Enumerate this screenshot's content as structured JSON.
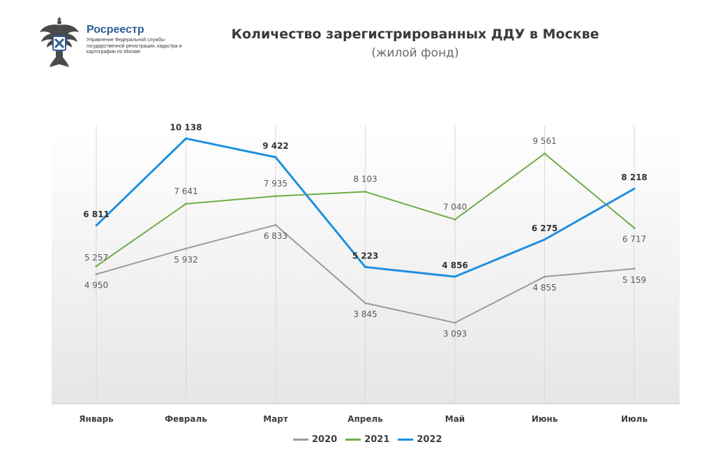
{
  "header": {
    "org_name": "Росреестр",
    "org_desc": "Управление Федеральной службы государственной регистрации, кадастра и картографии по Москве"
  },
  "chart_data": {
    "type": "line",
    "title": "Количество зарегистрированных  ДДУ в Москве",
    "subtitle": "(жилой фонд)",
    "categories": [
      "Январь",
      "Февраль",
      "Март",
      "Апрель",
      "Май",
      "Июнь",
      "Июль"
    ],
    "ylim": [
      0,
      11000
    ],
    "grid": "vertical",
    "legend": "bottom",
    "series": [
      {
        "name": "2020",
        "color": "#9b9b9b",
        "values": [
          4950,
          5932,
          6833,
          3845,
          3093,
          4855,
          5159
        ],
        "labels": [
          "4 950",
          "5 932",
          "6 833",
          "3 845",
          "3 093",
          "4 855",
          "5 159"
        ],
        "bold": false
      },
      {
        "name": "2021",
        "color": "#70ad47",
        "values": [
          5257,
          7641,
          7935,
          8103,
          7040,
          9561,
          6717
        ],
        "labels": [
          "5 257",
          "7 641",
          "7 935",
          "8 103",
          "7 040",
          "9 561",
          "6 717"
        ],
        "bold": false
      },
      {
        "name": "2022",
        "color": "#1f8fe0",
        "values": [
          6811,
          10138,
          9422,
          5223,
          4856,
          6275,
          8218
        ],
        "labels": [
          "6 811",
          "10 138",
          "9 422",
          "5 223",
          "4 856",
          "6 275",
          "8 218"
        ],
        "bold": true
      }
    ]
  }
}
